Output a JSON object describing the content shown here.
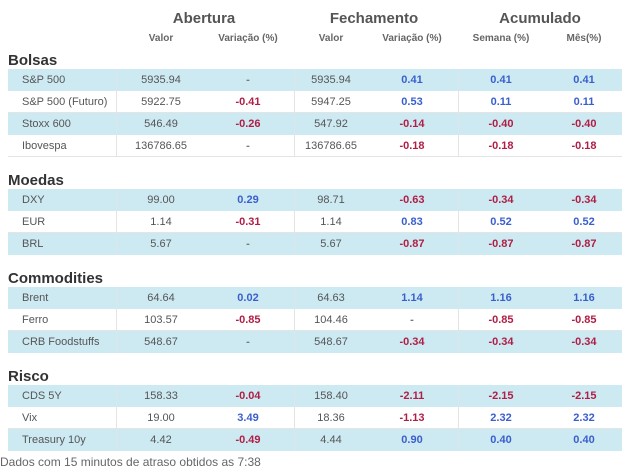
{
  "headers": {
    "groups": [
      "Abertura",
      "Fechamento",
      "Acumulado"
    ],
    "sub": [
      "Valor",
      "Variação (%)",
      "Valor",
      "Variação (%)",
      "Semana (%)",
      "Mês(%)"
    ]
  },
  "sections": [
    {
      "title": "Bolsas",
      "rows": [
        {
          "name": "S&P 500",
          "open": "5935.94",
          "open_var": "-",
          "close": "5935.94",
          "close_var": "0.41",
          "week": "0.41",
          "month": "0.41"
        },
        {
          "name": "S&P 500 (Futuro)",
          "open": "5922.75",
          "open_var": "-0.41",
          "close": "5947.25",
          "close_var": "0.53",
          "week": "0.11",
          "month": "0.11"
        },
        {
          "name": "Stoxx 600",
          "open": "546.49",
          "open_var": "-0.26",
          "close": "547.92",
          "close_var": "-0.14",
          "week": "-0.40",
          "month": "-0.40"
        },
        {
          "name": "Ibovespa",
          "open": "136786.65",
          "open_var": "-",
          "close": "136786.65",
          "close_var": "-0.18",
          "week": "-0.18",
          "month": "-0.18"
        }
      ]
    },
    {
      "title": "Moedas",
      "rows": [
        {
          "name": "DXY",
          "open": "99.00",
          "open_var": "0.29",
          "close": "98.71",
          "close_var": "-0.63",
          "week": "-0.34",
          "month": "-0.34"
        },
        {
          "name": "EUR",
          "open": "1.14",
          "open_var": "-0.31",
          "close": "1.14",
          "close_var": "0.83",
          "week": "0.52",
          "month": "0.52"
        },
        {
          "name": "BRL",
          "open": "5.67",
          "open_var": "-",
          "close": "5.67",
          "close_var": "-0.87",
          "week": "-0.87",
          "month": "-0.87"
        }
      ]
    },
    {
      "title": "Commodities",
      "rows": [
        {
          "name": "Brent",
          "open": "64.64",
          "open_var": "0.02",
          "close": "64.63",
          "close_var": "1.14",
          "week": "1.16",
          "month": "1.16"
        },
        {
          "name": "Ferro",
          "open": "103.57",
          "open_var": "-0.85",
          "close": "104.46",
          "close_var": "-",
          "week": "-0.85",
          "month": "-0.85"
        },
        {
          "name": "CRB Foodstuffs",
          "open": "548.67",
          "open_var": "-",
          "close": "548.67",
          "close_var": "-0.34",
          "week": "-0.34",
          "month": "-0.34"
        }
      ]
    },
    {
      "title": "Risco",
      "rows": [
        {
          "name": "CDS 5Y",
          "open": "158.33",
          "open_var": "-0.04",
          "close": "158.40",
          "close_var": "-2.11",
          "week": "-2.15",
          "month": "-2.15"
        },
        {
          "name": "Vix",
          "open": "19.00",
          "open_var": "3.49",
          "close": "18.36",
          "close_var": "-1.13",
          "week": "2.32",
          "month": "2.32"
        },
        {
          "name": "Treasury 10y",
          "open": "4.42",
          "open_var": "-0.49",
          "close": "4.44",
          "close_var": "0.90",
          "week": "0.40",
          "month": "0.40"
        }
      ]
    }
  ],
  "footer": "Dados com 15 minutos de atraso obtidos as 7:38",
  "colors": {
    "positive": "#3a5fcd",
    "negative": "#b01e45",
    "row_highlight": "#cdeaf3"
  }
}
